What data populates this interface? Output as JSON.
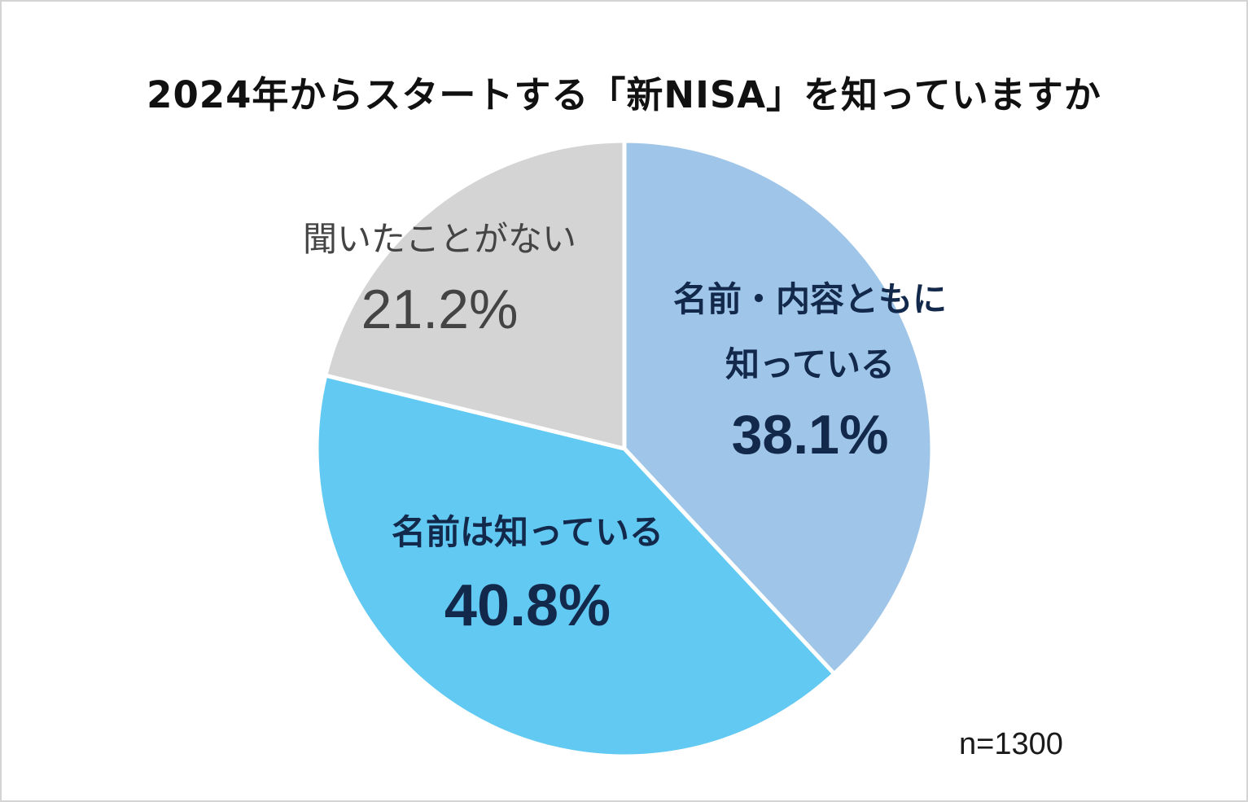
{
  "chart_data": {
    "type": "pie",
    "title": "2024年からスタートする「新NISA」を知っていますか",
    "slices": [
      {
        "label_lines": [
          "名前・内容ともに",
          "知っている"
        ],
        "value": 38.1,
        "value_label": "38.1%",
        "color": "#9fc5e8",
        "text_color": "#13294b",
        "bold": true
      },
      {
        "label_lines": [
          "名前は知っている"
        ],
        "value": 40.8,
        "value_label": "40.8%",
        "color": "#62c9f2",
        "text_color": "#13294b",
        "bold": true
      },
      {
        "label_lines": [
          "聞いたことがない"
        ],
        "value": 21.2,
        "value_label": "21.2%",
        "color": "#d4d4d4",
        "text_color": "#444444",
        "bold": false
      }
    ],
    "note": "n=1300"
  }
}
